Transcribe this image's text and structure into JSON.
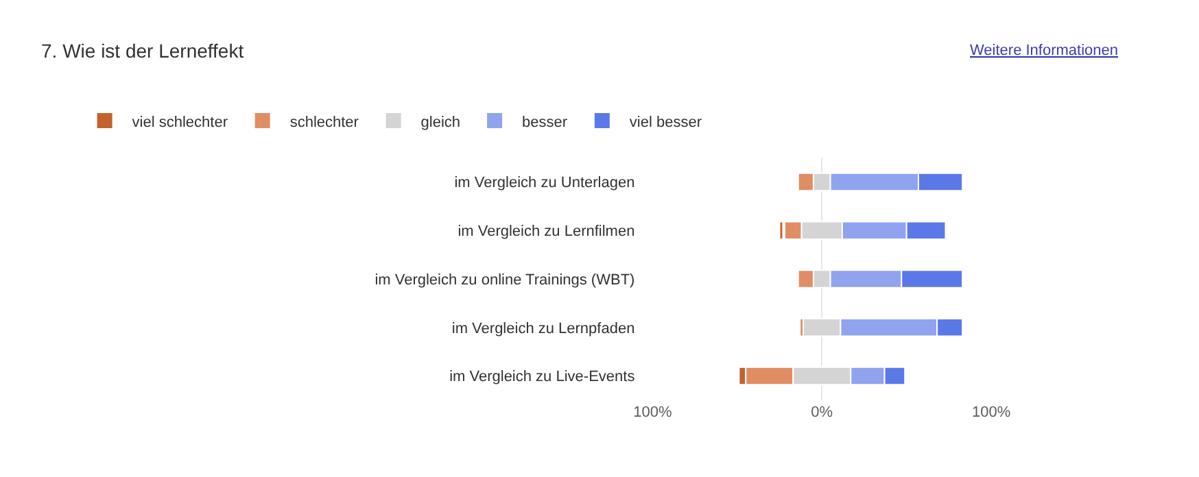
{
  "chart_data": {
    "type": "bar",
    "orientation": "horizontal",
    "title": "7. Wie ist der Lerneffekt",
    "annotations": [
      "Weitere Informationen"
    ],
    "categories": [
      "im Vergleich zu Unterlagen",
      "im Vergleich zu Lernfilmen",
      "im Vergleich zu online Trainings (WBT)",
      "im Vergleich zu Lernpfaden",
      "im Vergleich zu Live-Events"
    ],
    "series": [
      {
        "name": "viel schlechter",
        "color": "#c4622d",
        "values": [
          null,
          2,
          null,
          null,
          4
        ],
        "base": [
          null,
          -25,
          null,
          null,
          -49
        ]
      },
      {
        "name": "schlechter",
        "color": "#e08d63",
        "values": [
          9,
          10,
          9,
          2,
          28
        ],
        "base": [
          -14,
          -22,
          -14,
          -13,
          -45
        ]
      },
      {
        "name": "gleich",
        "color": "#d4d4d4",
        "values": [
          10,
          24,
          10,
          22,
          34
        ],
        "base": [
          -5,
          -12,
          -5,
          -11,
          -17
        ]
      },
      {
        "name": "besser",
        "color": "#8fa3ef",
        "values": [
          52,
          38,
          42,
          57,
          20
        ],
        "base": [
          5,
          12,
          5,
          11,
          17
        ]
      },
      {
        "name": "viel besser",
        "color": "#5b79e6",
        "values": [
          26,
          23,
          36,
          15,
          12
        ],
        "base": [
          57,
          50,
          47,
          68,
          37
        ]
      }
    ],
    "xlim": [
      -100,
      100
    ],
    "xticks": [
      {
        "value": -100,
        "label": "100%"
      },
      {
        "value": 0,
        "label": "0%"
      },
      {
        "value": 100,
        "label": "100%"
      }
    ],
    "grid": "x",
    "legend": "top left"
  }
}
